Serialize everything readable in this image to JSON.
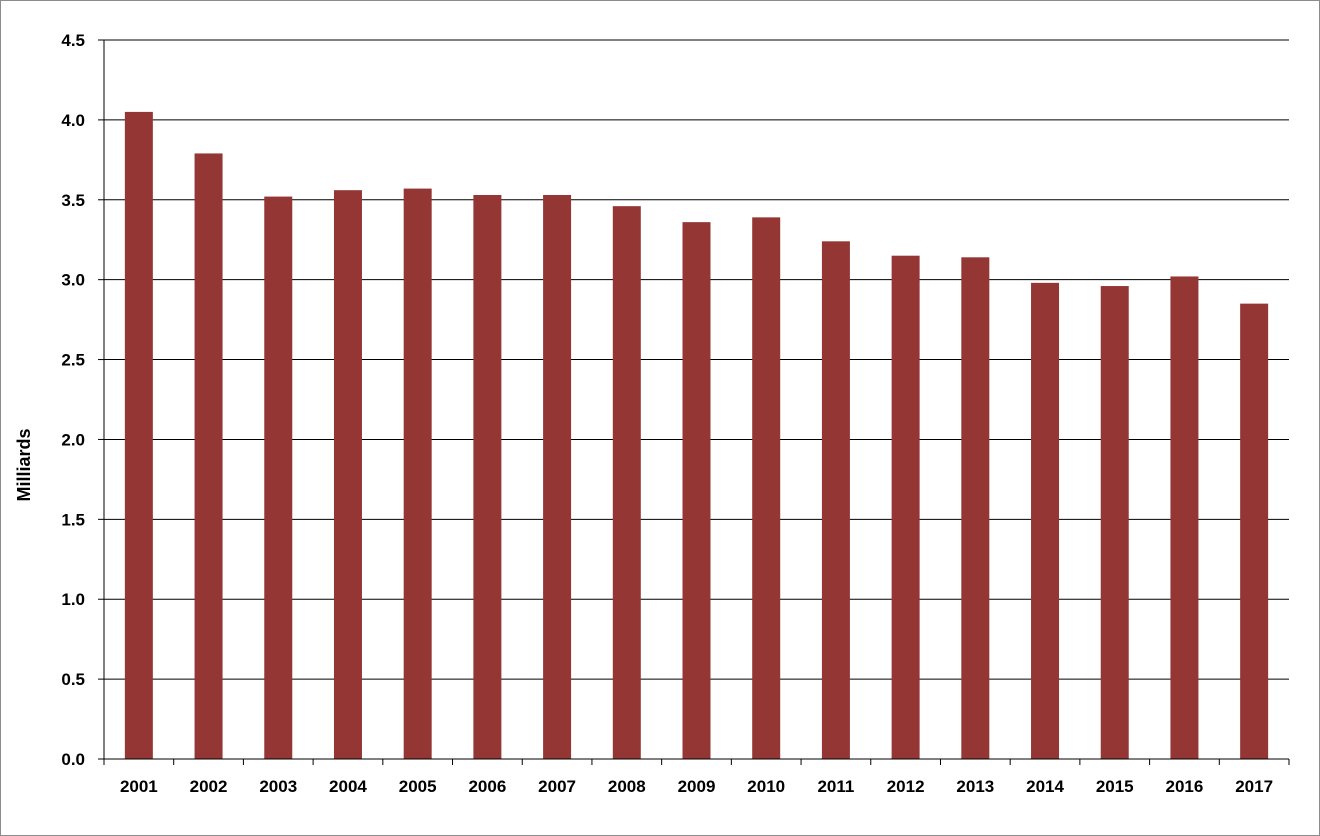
{
  "chart_data": {
    "type": "bar",
    "title": "",
    "xlabel": "",
    "ylabel": "Milliards",
    "ylim": [
      0,
      4.5
    ],
    "ytick_step": 0.5,
    "grid": true,
    "legend": "none",
    "bar_color": "#943634",
    "categories": [
      "2001",
      "2002",
      "2003",
      "2004",
      "2005",
      "2006",
      "2007",
      "2008",
      "2009",
      "2010",
      "2011",
      "2012",
      "2013",
      "2014",
      "2015",
      "2016",
      "2017"
    ],
    "values": [
      4.05,
      3.79,
      3.52,
      3.56,
      3.57,
      3.53,
      3.53,
      3.46,
      3.36,
      3.39,
      3.24,
      3.15,
      3.14,
      2.98,
      2.96,
      3.02,
      2.85
    ]
  }
}
